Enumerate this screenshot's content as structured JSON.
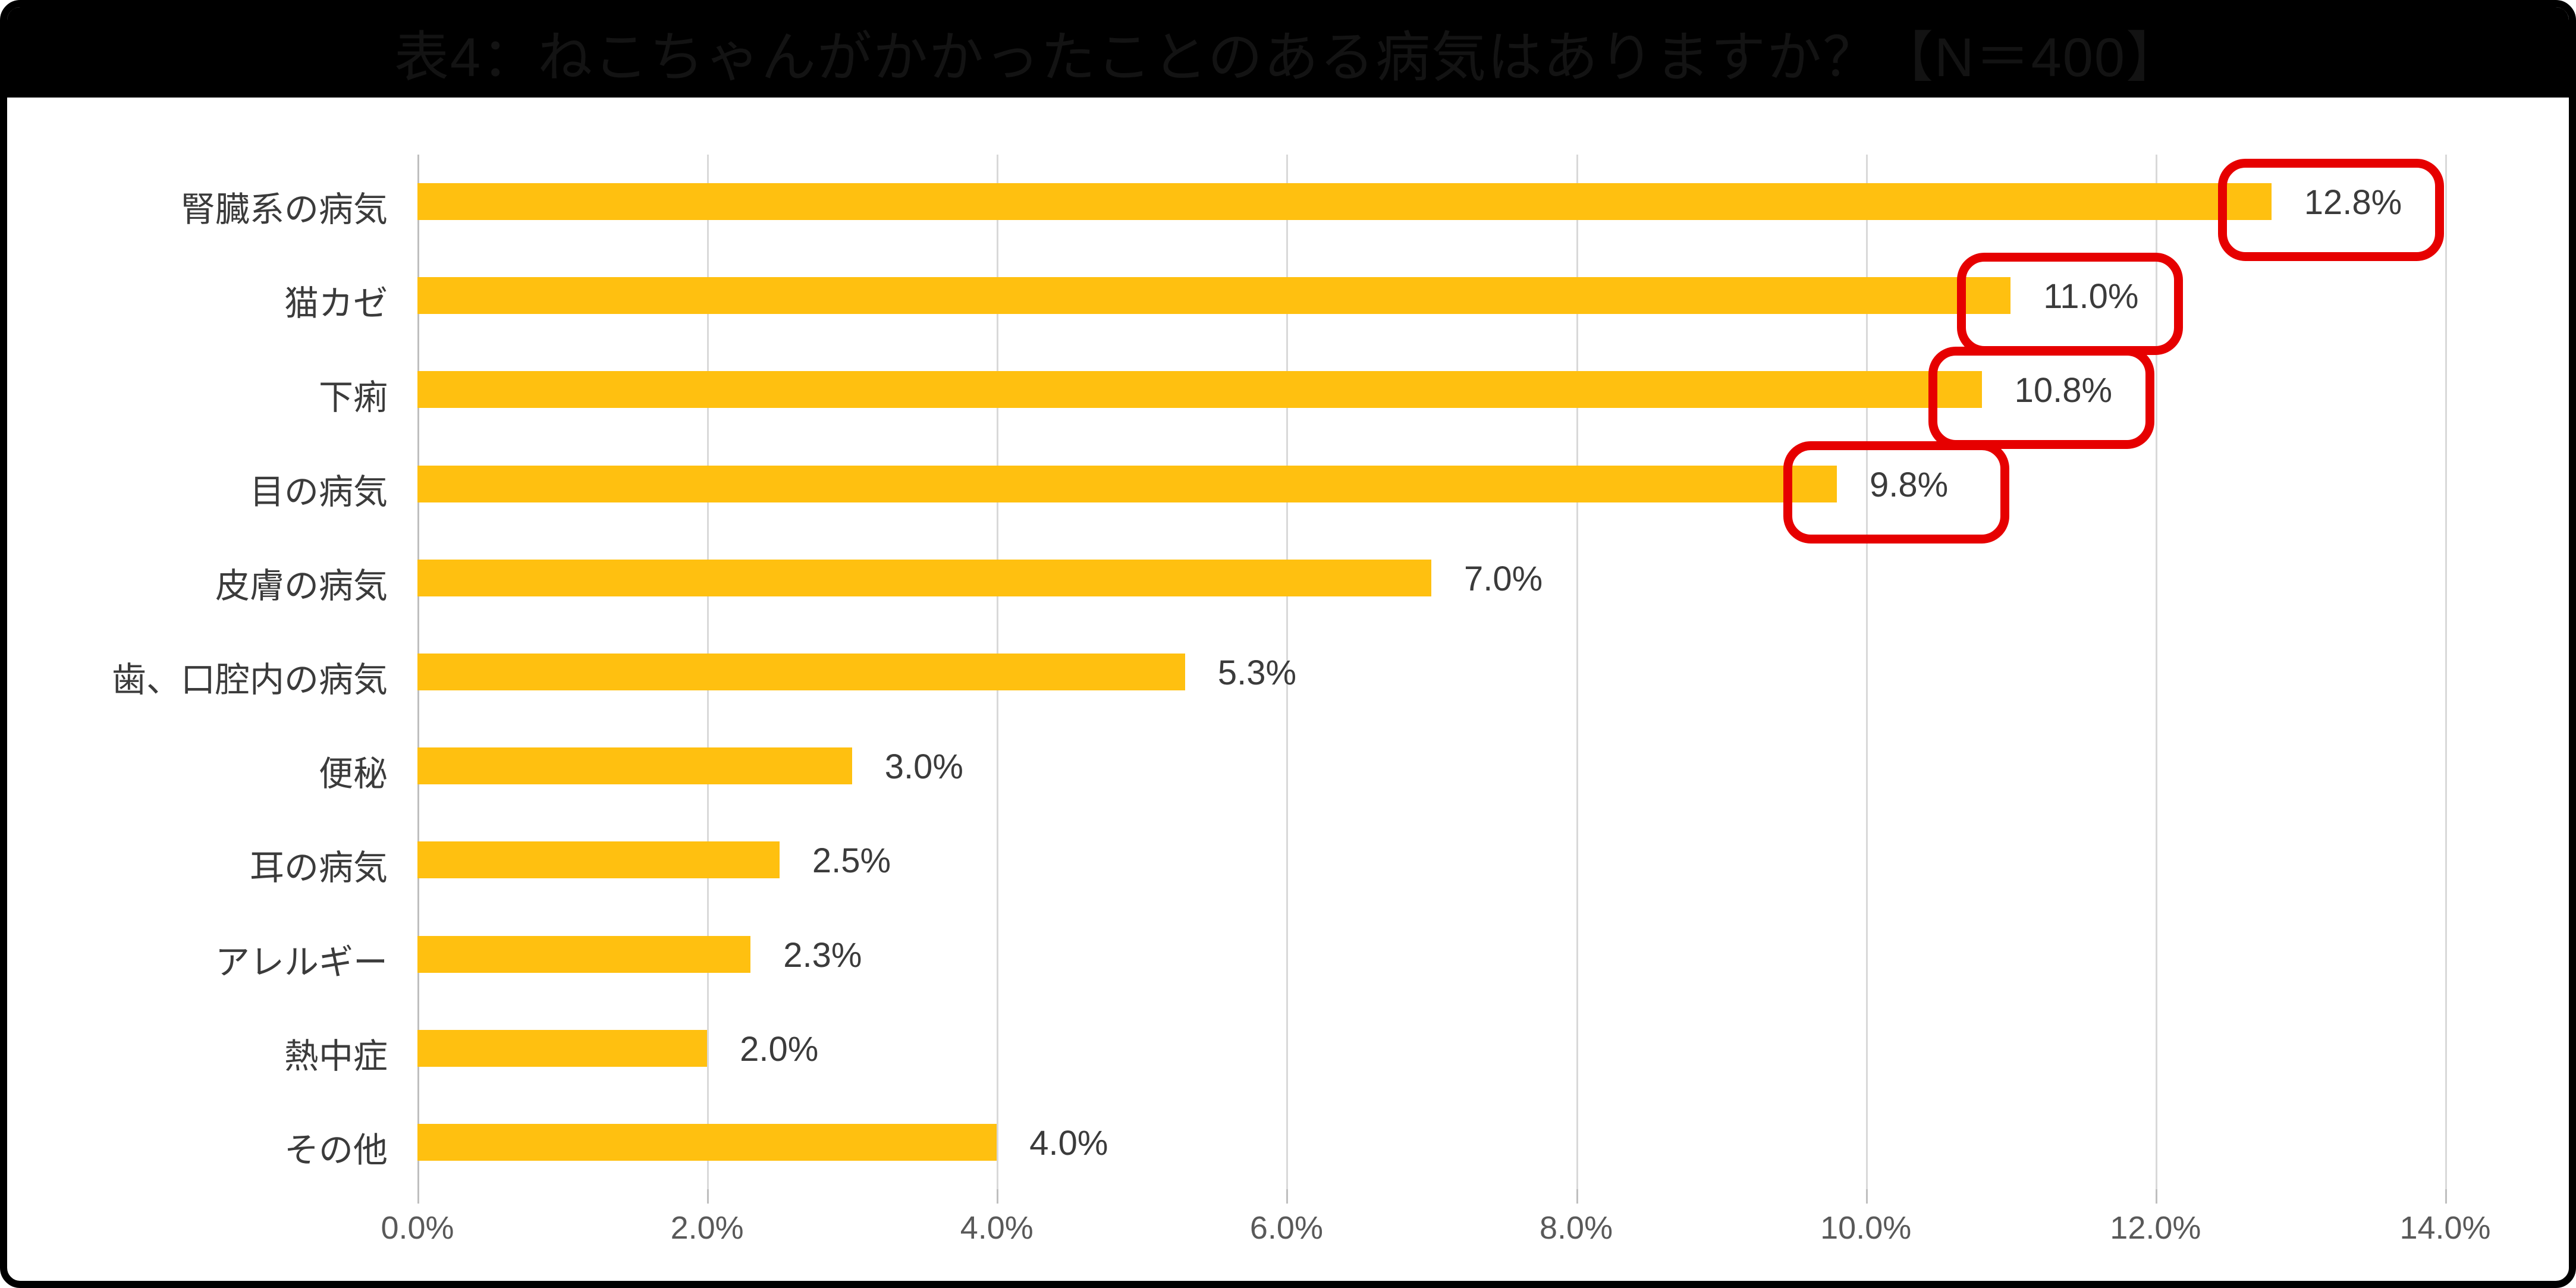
{
  "title": "表4：ねこちゃんがかかったことのある病気はありますか？【N＝400】",
  "colors": {
    "bar": "#ffc010",
    "highlight_box": "#e60000",
    "gridline": "#d9d9d9",
    "axis_text": "#595959",
    "label_text": "#3b3b3b",
    "title_bar_bg": "#000000"
  },
  "chart_data": {
    "type": "bar",
    "orientation": "horizontal",
    "title": "表4：ねこちゃんがかかったことのある病気はありますか？【N＝400】",
    "categories": [
      "腎臓系の病気",
      "猫カゼ",
      "下痢",
      "目の病気",
      "皮膚の病気",
      "歯、口腔内の病気",
      "便秘",
      "耳の病気",
      "アレルギー",
      "熱中症",
      "その他"
    ],
    "values": [
      12.8,
      11.0,
      10.8,
      9.8,
      7.0,
      5.3,
      3.0,
      2.5,
      2.3,
      2.0,
      4.0
    ],
    "value_labels": [
      "12.8%",
      "11.0%",
      "10.8%",
      "9.8%",
      "7.0%",
      "5.3%",
      "3.0%",
      "2.5%",
      "2.3%",
      "2.0%",
      "4.0%"
    ],
    "highlighted": [
      true,
      true,
      true,
      true,
      false,
      false,
      false,
      false,
      false,
      false,
      false
    ],
    "xlim": [
      0,
      14
    ],
    "x_tick_labels": [
      "0.0%",
      "2.0%",
      "4.0%",
      "6.0%",
      "8.0%",
      "10.0%",
      "12.0%",
      "14.0%"
    ],
    "x_tick_values": [
      0,
      2,
      4,
      6,
      8,
      10,
      12,
      14
    ],
    "grid": true,
    "legend": "none"
  }
}
